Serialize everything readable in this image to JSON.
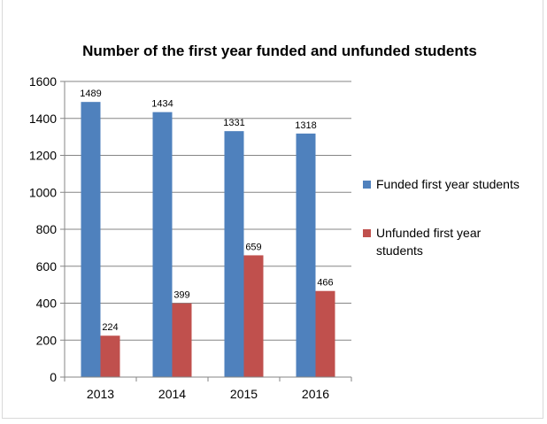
{
  "chart_data": {
    "type": "bar",
    "title": "Number of the first year funded and unfunded students",
    "categories": [
      "2013",
      "2014",
      "2015",
      "2016"
    ],
    "series": [
      {
        "name": "Funded first year students",
        "values": [
          1489,
          1434,
          1331,
          1318
        ],
        "color": "#4f81bd"
      },
      {
        "name": "Unfunded first year students",
        "legend_lines": [
          "Unfunded first year",
          "students"
        ],
        "values": [
          224,
          399,
          659,
          466
        ],
        "color": "#c0504d"
      }
    ],
    "ylim": [
      0,
      1600
    ],
    "yticks": [
      0,
      200,
      400,
      600,
      800,
      1000,
      1200,
      1400,
      1600
    ],
    "grid": true,
    "legend_position": "right",
    "data_labels": true
  }
}
